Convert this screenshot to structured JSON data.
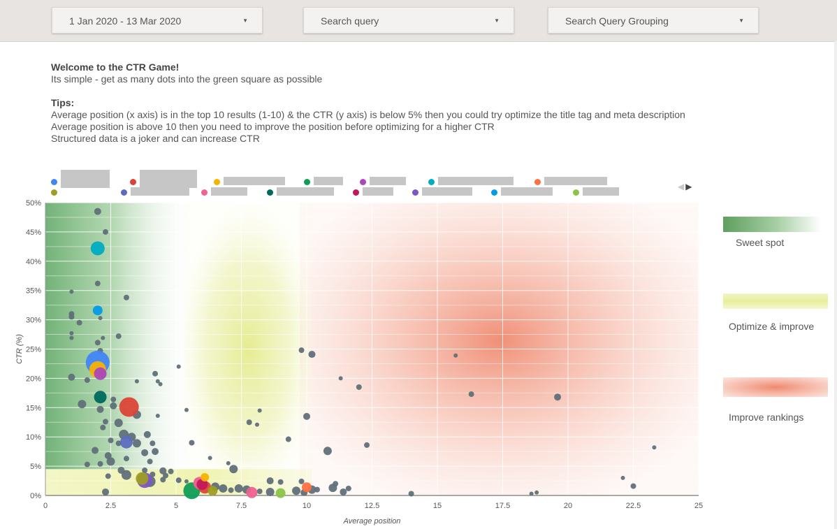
{
  "filters": {
    "date_range": "1 Jan 2020 - 13 Mar 2020",
    "search_query": "Search query",
    "query_grouping": "Search Query Grouping"
  },
  "intro": {
    "title": "Welcome to the CTR Game!",
    "subtitle": "Its simple - get as many dots into the green square as possible",
    "tips_heading": "Tips:",
    "tips": [
      "Average position (x axis) is in the top 10 results (1-10) & the CTR (y axis) is below 5% then you could try optimize the title tag and meta description",
      "Average position is above 10 then you need to improve the position before optimizing for a higher CTR",
      "Structured data is a joker and can increase CTR"
    ]
  },
  "legend_colors": [
    "#4285f4",
    "#db4437",
    "#f4b400",
    "#0f9d58",
    "#ab47bc",
    "#00acc1",
    "#ff7043",
    "#9e9d24",
    "#5c6bc0",
    "#f06292",
    "#00695c",
    "#c2185b",
    "#7e57c2",
    "#039be5",
    "#8bc34a"
  ],
  "zone_legend": {
    "sweet_spot": "Sweet spot",
    "optimize": "Optimize & improve",
    "improve": "Improve rankings"
  },
  "colors": {
    "sweet": "#4e9f5a",
    "optimize": "#e6ee9c",
    "improve": "#ef8a72",
    "point": "#607079"
  },
  "chart_data": {
    "type": "scatter",
    "title": "",
    "xlabel": "Average position",
    "ylabel": "CTR (%)",
    "xlim": [
      0,
      25
    ],
    "ylim": [
      0,
      50
    ],
    "x_ticks": [
      0,
      2.5,
      5,
      7.5,
      10,
      12.5,
      15,
      17.5,
      20,
      22.5,
      25
    ],
    "x_tick_labels": [
      "0",
      "2.5",
      "5",
      "7.5",
      "10",
      "12.5",
      "15",
      "17.5",
      "20",
      "22.5",
      "25"
    ],
    "y_ticks": [
      0,
      5,
      10,
      15,
      20,
      25,
      30,
      35,
      40,
      45,
      50
    ],
    "y_tick_labels": [
      "0%",
      "5%",
      "10%",
      "15%",
      "20%",
      "25%",
      "30%",
      "35%",
      "40%",
      "45%",
      "50%"
    ],
    "grid": true,
    "zones": [
      {
        "label": "Sweet spot",
        "x": [
          0,
          5.5
        ],
        "y": [
          5,
          50
        ]
      },
      {
        "label": "Optimize & improve",
        "x": [
          5.5,
          10
        ],
        "y": [
          5,
          50
        ]
      },
      {
        "label": "Optimize & improve",
        "x": [
          0,
          10
        ],
        "y": [
          0,
          5
        ]
      },
      {
        "label": "Improve rankings",
        "x": [
          10,
          25
        ],
        "y": [
          0,
          50
        ]
      }
    ],
    "points": [
      {
        "x": 2.0,
        "y": 48.5,
        "size": 5,
        "color": "#607079"
      },
      {
        "x": 2.3,
        "y": 45.0,
        "size": 4,
        "color": "#607079"
      },
      {
        "x": 2.0,
        "y": 42.2,
        "size": 10,
        "color": "#00acc1"
      },
      {
        "x": 2.0,
        "y": 36.2,
        "size": 4,
        "color": "#607079"
      },
      {
        "x": 1.0,
        "y": 34.8,
        "size": 3,
        "color": "#607079"
      },
      {
        "x": 3.1,
        "y": 33.8,
        "size": 4,
        "color": "#607079"
      },
      {
        "x": 2.0,
        "y": 31.6,
        "size": 7,
        "color": "#039be5"
      },
      {
        "x": 1.0,
        "y": 31.0,
        "size": 4,
        "color": "#607079"
      },
      {
        "x": 1.0,
        "y": 30.5,
        "size": 4,
        "color": "#607079"
      },
      {
        "x": 2.1,
        "y": 30.3,
        "size": 3,
        "color": "#607079"
      },
      {
        "x": 1.3,
        "y": 29.5,
        "size": 4,
        "color": "#607079"
      },
      {
        "x": 1.0,
        "y": 27.7,
        "size": 3,
        "color": "#607079"
      },
      {
        "x": 1.0,
        "y": 26.9,
        "size": 3,
        "color": "#607079"
      },
      {
        "x": 2.2,
        "y": 26.9,
        "size": 3,
        "color": "#607079"
      },
      {
        "x": 2.8,
        "y": 27.2,
        "size": 4,
        "color": "#607079"
      },
      {
        "x": 2.0,
        "y": 26.1,
        "size": 4,
        "color": "#607079"
      },
      {
        "x": 2.1,
        "y": 24.7,
        "size": 4,
        "color": "#607079"
      },
      {
        "x": 2.0,
        "y": 22.7,
        "size": 17,
        "color": "#4285f4"
      },
      {
        "x": 2.0,
        "y": 21.5,
        "size": 12,
        "color": "#f4b400"
      },
      {
        "x": 2.1,
        "y": 20.8,
        "size": 9,
        "color": "#ab47bc"
      },
      {
        "x": 5.1,
        "y": 22.0,
        "size": 3,
        "color": "#607079"
      },
      {
        "x": 1.0,
        "y": 20.2,
        "size": 5,
        "color": "#607079"
      },
      {
        "x": 1.6,
        "y": 19.7,
        "size": 4,
        "color": "#607079"
      },
      {
        "x": 4.2,
        "y": 20.8,
        "size": 4,
        "color": "#607079"
      },
      {
        "x": 3.5,
        "y": 19.5,
        "size": 3,
        "color": "#607079"
      },
      {
        "x": 4.3,
        "y": 19.5,
        "size": 3,
        "color": "#607079"
      },
      {
        "x": 4.4,
        "y": 19.0,
        "size": 3,
        "color": "#607079"
      },
      {
        "x": 2.1,
        "y": 16.8,
        "size": 9,
        "color": "#00695c"
      },
      {
        "x": 2.6,
        "y": 16.4,
        "size": 4,
        "color": "#607079"
      },
      {
        "x": 1.4,
        "y": 15.6,
        "size": 6,
        "color": "#607079"
      },
      {
        "x": 2.6,
        "y": 15.3,
        "size": 5,
        "color": "#607079"
      },
      {
        "x": 3.2,
        "y": 15.1,
        "size": 14,
        "color": "#db4437"
      },
      {
        "x": 2.1,
        "y": 14.7,
        "size": 5,
        "color": "#607079"
      },
      {
        "x": 5.4,
        "y": 14.6,
        "size": 3,
        "color": "#607079"
      },
      {
        "x": 3.5,
        "y": 13.8,
        "size": 6,
        "color": "#607079"
      },
      {
        "x": 4.3,
        "y": 13.6,
        "size": 3,
        "color": "#607079"
      },
      {
        "x": 2.3,
        "y": 12.6,
        "size": 4,
        "color": "#607079"
      },
      {
        "x": 2.8,
        "y": 12.4,
        "size": 6,
        "color": "#607079"
      },
      {
        "x": 2.2,
        "y": 11.6,
        "size": 4,
        "color": "#607079"
      },
      {
        "x": 3.0,
        "y": 10.4,
        "size": 7,
        "color": "#607079"
      },
      {
        "x": 3.3,
        "y": 10.0,
        "size": 6,
        "color": "#607079"
      },
      {
        "x": 3.9,
        "y": 10.4,
        "size": 5,
        "color": "#607079"
      },
      {
        "x": 2.5,
        "y": 9.4,
        "size": 4,
        "color": "#607079"
      },
      {
        "x": 3.1,
        "y": 9.1,
        "size": 9,
        "color": "#5c6bc0"
      },
      {
        "x": 3.5,
        "y": 8.9,
        "size": 6,
        "color": "#607079"
      },
      {
        "x": 2.8,
        "y": 8.9,
        "size": 4,
        "color": "#607079"
      },
      {
        "x": 4.1,
        "y": 8.9,
        "size": 4,
        "color": "#607079"
      },
      {
        "x": 5.6,
        "y": 9.0,
        "size": 4,
        "color": "#607079"
      },
      {
        "x": 1.9,
        "y": 7.7,
        "size": 5,
        "color": "#607079"
      },
      {
        "x": 3.8,
        "y": 7.3,
        "size": 5,
        "color": "#607079"
      },
      {
        "x": 4.2,
        "y": 7.5,
        "size": 5,
        "color": "#607079"
      },
      {
        "x": 2.4,
        "y": 6.8,
        "size": 5,
        "color": "#607079"
      },
      {
        "x": 3.1,
        "y": 6.3,
        "size": 4,
        "color": "#607079"
      },
      {
        "x": 2.5,
        "y": 5.8,
        "size": 6,
        "color": "#607079"
      },
      {
        "x": 4.0,
        "y": 5.8,
        "size": 4,
        "color": "#607079"
      },
      {
        "x": 1.6,
        "y": 5.3,
        "size": 4,
        "color": "#607079"
      },
      {
        "x": 2.1,
        "y": 5.4,
        "size": 4,
        "color": "#607079"
      },
      {
        "x": 6.3,
        "y": 6.4,
        "size": 3,
        "color": "#607079"
      },
      {
        "x": 7.0,
        "y": 5.5,
        "size": 3,
        "color": "#607079"
      },
      {
        "x": 7.2,
        "y": 4.5,
        "size": 6,
        "color": "#607079"
      },
      {
        "x": 2.9,
        "y": 4.3,
        "size": 5,
        "color": "#607079"
      },
      {
        "x": 3.8,
        "y": 4.3,
        "size": 4,
        "color": "#607079"
      },
      {
        "x": 4.5,
        "y": 4.2,
        "size": 5,
        "color": "#607079"
      },
      {
        "x": 4.8,
        "y": 4.1,
        "size": 4,
        "color": "#607079"
      },
      {
        "x": 3.1,
        "y": 3.5,
        "size": 7,
        "color": "#607079"
      },
      {
        "x": 4.1,
        "y": 3.6,
        "size": 4,
        "color": "#607079"
      },
      {
        "x": 4.6,
        "y": 3.4,
        "size": 4,
        "color": "#607079"
      },
      {
        "x": 2.4,
        "y": 3.3,
        "size": 4,
        "color": "#607079"
      },
      {
        "x": 3.7,
        "y": 2.9,
        "size": 9,
        "color": "#9e9d24"
      },
      {
        "x": 3.8,
        "y": 2.6,
        "size": 11,
        "color": "#7e57c2"
      },
      {
        "x": 4.0,
        "y": 2.4,
        "size": 8,
        "color": "#607079"
      },
      {
        "x": 4.5,
        "y": 2.7,
        "size": 4,
        "color": "#607079"
      },
      {
        "x": 5.1,
        "y": 2.6,
        "size": 4,
        "color": "#607079"
      },
      {
        "x": 5.4,
        "y": 2.4,
        "size": 3,
        "color": "#607079"
      },
      {
        "x": 5.8,
        "y": 2.5,
        "size": 4,
        "color": "#607079"
      },
      {
        "x": 6.1,
        "y": 3.1,
        "size": 6,
        "color": "#f4b400"
      },
      {
        "x": 5.9,
        "y": 2.1,
        "size": 9,
        "color": "#f06292"
      },
      {
        "x": 6.0,
        "y": 1.9,
        "size": 8,
        "color": "#c2185b"
      },
      {
        "x": 6.1,
        "y": 1.4,
        "size": 9,
        "color": "#db4437"
      },
      {
        "x": 5.6,
        "y": 0.8,
        "size": 12,
        "color": "#0f9d58"
      },
      {
        "x": 6.4,
        "y": 0.8,
        "size": 7,
        "color": "#9e9d24"
      },
      {
        "x": 6.5,
        "y": 1.5,
        "size": 6,
        "color": "#607079"
      },
      {
        "x": 6.8,
        "y": 1.2,
        "size": 6,
        "color": "#607079"
      },
      {
        "x": 7.1,
        "y": 0.9,
        "size": 4,
        "color": "#607079"
      },
      {
        "x": 7.4,
        "y": 1.2,
        "size": 6,
        "color": "#607079"
      },
      {
        "x": 7.7,
        "y": 1.0,
        "size": 6,
        "color": "#607079"
      },
      {
        "x": 7.9,
        "y": 0.5,
        "size": 8,
        "color": "#f06292"
      },
      {
        "x": 8.2,
        "y": 0.7,
        "size": 4,
        "color": "#607079"
      },
      {
        "x": 8.6,
        "y": 2.5,
        "size": 5,
        "color": "#607079"
      },
      {
        "x": 8.6,
        "y": 0.6,
        "size": 6,
        "color": "#607079"
      },
      {
        "x": 9.0,
        "y": 0.4,
        "size": 7,
        "color": "#8bc34a"
      },
      {
        "x": 9.0,
        "y": 2.3,
        "size": 4,
        "color": "#607079"
      },
      {
        "x": 9.6,
        "y": 0.8,
        "size": 6,
        "color": "#607079"
      },
      {
        "x": 9.9,
        "y": 0.5,
        "size": 5,
        "color": "#607079"
      },
      {
        "x": 9.8,
        "y": 2.4,
        "size": 4,
        "color": "#607079"
      },
      {
        "x": 10.0,
        "y": 1.4,
        "size": 7,
        "color": "#ff7043"
      },
      {
        "x": 10.2,
        "y": 1.0,
        "size": 6,
        "color": "#607079"
      },
      {
        "x": 10.4,
        "y": 1.0,
        "size": 4,
        "color": "#607079"
      },
      {
        "x": 11.0,
        "y": 1.3,
        "size": 6,
        "color": "#607079"
      },
      {
        "x": 11.1,
        "y": 2.0,
        "size": 4,
        "color": "#607079"
      },
      {
        "x": 11.4,
        "y": 0.6,
        "size": 5,
        "color": "#607079"
      },
      {
        "x": 11.6,
        "y": 1.2,
        "size": 4,
        "color": "#607079"
      },
      {
        "x": 2.3,
        "y": 0.6,
        "size": 5,
        "color": "#607079"
      },
      {
        "x": 7.8,
        "y": 12.5,
        "size": 4,
        "color": "#607079"
      },
      {
        "x": 8.1,
        "y": 12.1,
        "size": 3,
        "color": "#607079"
      },
      {
        "x": 8.2,
        "y": 14.5,
        "size": 3,
        "color": "#607079"
      },
      {
        "x": 9.3,
        "y": 9.6,
        "size": 4,
        "color": "#607079"
      },
      {
        "x": 10.0,
        "y": 13.5,
        "size": 5,
        "color": "#607079"
      },
      {
        "x": 10.8,
        "y": 7.6,
        "size": 6,
        "color": "#607079"
      },
      {
        "x": 9.8,
        "y": 24.8,
        "size": 4,
        "color": "#607079"
      },
      {
        "x": 10.2,
        "y": 24.1,
        "size": 5,
        "color": "#607079"
      },
      {
        "x": 11.3,
        "y": 20.0,
        "size": 3,
        "color": "#607079"
      },
      {
        "x": 12.0,
        "y": 18.5,
        "size": 4,
        "color": "#607079"
      },
      {
        "x": 12.3,
        "y": 8.6,
        "size": 4,
        "color": "#607079"
      },
      {
        "x": 14.0,
        "y": 0.3,
        "size": 4,
        "color": "#607079"
      },
      {
        "x": 15.7,
        "y": 23.9,
        "size": 3,
        "color": "#607079"
      },
      {
        "x": 16.3,
        "y": 17.3,
        "size": 4,
        "color": "#607079"
      },
      {
        "x": 18.6,
        "y": 0.3,
        "size": 3,
        "color": "#607079"
      },
      {
        "x": 18.8,
        "y": 0.5,
        "size": 3,
        "color": "#607079"
      },
      {
        "x": 19.6,
        "y": 16.8,
        "size": 5,
        "color": "#607079"
      },
      {
        "x": 22.1,
        "y": 3.0,
        "size": 3,
        "color": "#607079"
      },
      {
        "x": 22.5,
        "y": 1.6,
        "size": 4,
        "color": "#607079"
      },
      {
        "x": 23.3,
        "y": 8.2,
        "size": 3,
        "color": "#607079"
      }
    ]
  }
}
